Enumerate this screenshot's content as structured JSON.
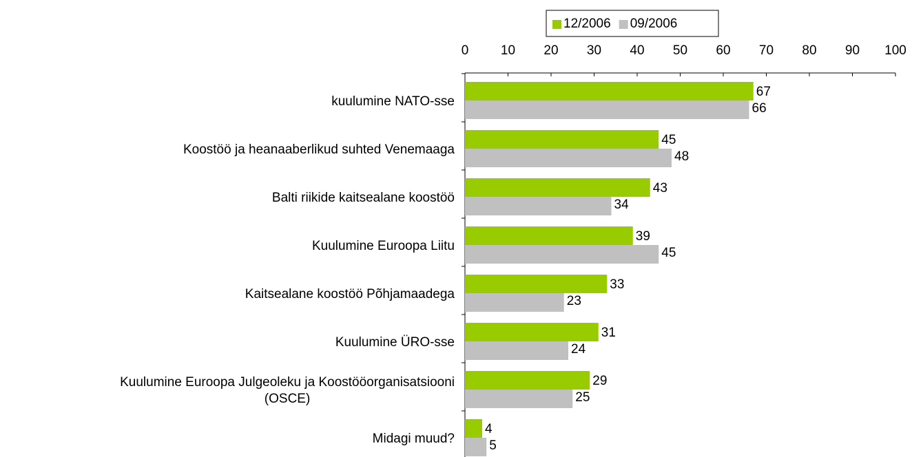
{
  "chart_data": {
    "type": "bar",
    "orientation": "horizontal",
    "categories": [
      "kuulumine NATO-sse",
      "Koostöö ja heanaaberlikud suhted Venemaaga",
      "Balti riikide kaitsealane koostöö",
      "Kuulumine Euroopa Liitu",
      "Kaitsealane koostöö Põhjamaadega",
      "Kuulumine ÜRO-sse",
      "Kuulumine Euroopa Julgeoleku ja Koostööorganisatsiooni\n(OSCE)",
      "Midagi muud?"
    ],
    "series": [
      {
        "name": "12/2006",
        "color": "#99cc00",
        "values": [
          67,
          45,
          43,
          39,
          33,
          31,
          29,
          4
        ]
      },
      {
        "name": "09/2006",
        "color": "#c0c0c0",
        "values": [
          66,
          48,
          34,
          45,
          23,
          24,
          25,
          5
        ]
      }
    ],
    "xlim": [
      0,
      100
    ],
    "xticks": [
      0,
      10,
      20,
      30,
      40,
      50,
      60,
      70,
      80,
      90,
      100
    ],
    "grid": false,
    "legend": "top"
  }
}
